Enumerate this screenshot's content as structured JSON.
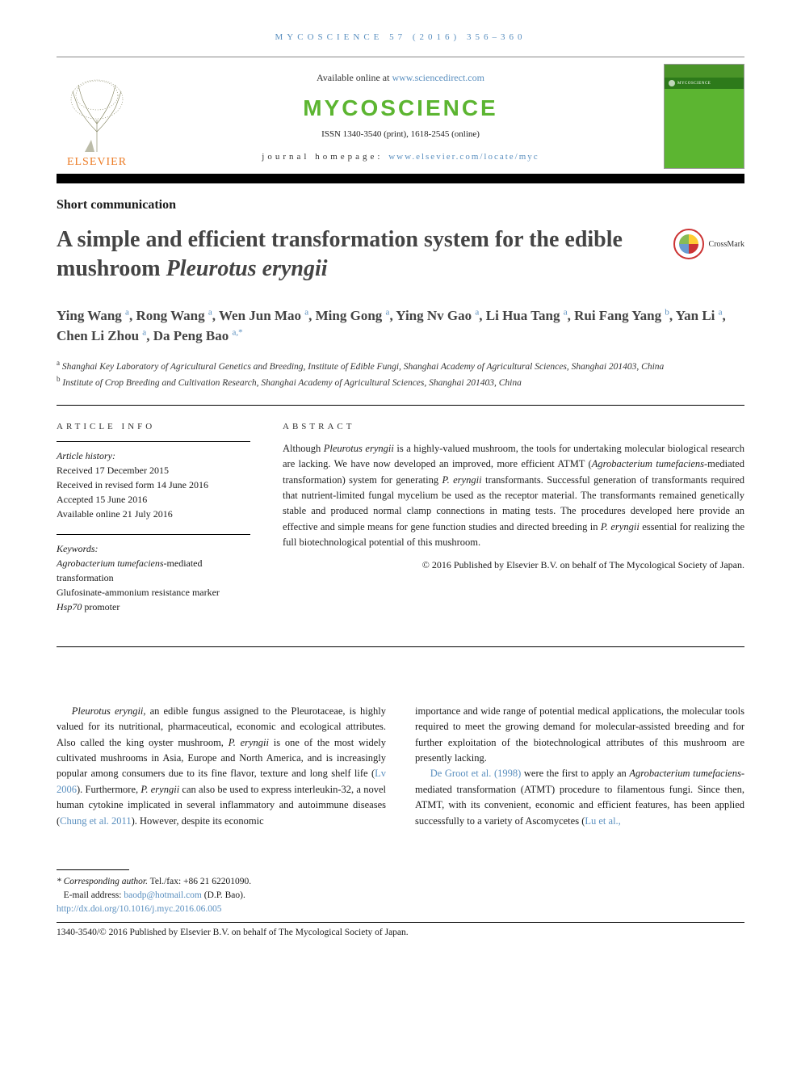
{
  "running_head": "MYCOSCIENCE 57 (2016) 356–360",
  "masthead": {
    "available_prefix": "Available online at ",
    "available_url": "www.sciencedirect.com",
    "journal_brand": "MYCOSCIENCE",
    "issn": "ISSN 1340-3540 (print), 1618-2545 (online)",
    "homepage_prefix": "journal homepage: ",
    "homepage_url": "www.elsevier.com/locate/myc",
    "elsevier": "ELSEVIER",
    "cover_band": "MYCOSCIENCE"
  },
  "article_type": "Short communication",
  "title_pre": "A simple and efficient transformation system for the edible mushroom ",
  "title_em": "Pleurotus eryngii",
  "crossmark": "CrossMark",
  "authors_html": "Ying Wang <sup>a</sup>, Rong Wang <sup>a</sup>, Wen Jun Mao <sup>a</sup>, Ming Gong <sup>a</sup>, Ying Nv Gao <sup>a</sup>, Li Hua Tang <sup>a</sup>, Rui Fang Yang <sup>b</sup>, Yan Li <sup>a</sup>, Chen Li Zhou <sup>a</sup>, Da Peng Bao <sup>a,*</sup>",
  "affiliations": {
    "a": "Shanghai Key Laboratory of Agricultural Genetics and Breeding, Institute of Edible Fungi, Shanghai Academy of Agricultural Sciences, Shanghai 201403, China",
    "b": "Institute of Crop Breeding and Cultivation Research, Shanghai Academy of Agricultural Sciences, Shanghai 201403, China"
  },
  "info_head": "ARTICLE INFO",
  "abs_head": "ABSTRACT",
  "history": {
    "label": "Article history:",
    "received": "Received 17 December 2015",
    "revised": "Received in revised form 14 June 2016",
    "accepted": "Accepted 15 June 2016",
    "online": "Available online 21 July 2016"
  },
  "keywords": {
    "label": "Keywords:",
    "k1_pre": "Agrobacterium tumefaciens",
    "k1_post": "-mediated transformation",
    "k2": "Glufosinate-ammonium resistance marker",
    "k3_em": "Hsp70",
    "k3_post": " promoter"
  },
  "abstract_parts": {
    "p1": "Although ",
    "em1": "Pleurotus eryngii",
    "p2": " is a highly-valued mushroom, the tools for undertaking molecular biological research are lacking. We have now developed an improved, more efficient ATMT (",
    "em2": "Agrobacterium tumefaciens",
    "p3": "-mediated transformation) system for generating ",
    "em3": "P. eryngii",
    "p4": " transformants. Successful generation of transformants required that nutrient-limited fungal mycelium be used as the receptor material. The transformants remained genetically stable and produced normal clamp connections in mating tests. The procedures developed here provide an effective and simple means for gene function studies and directed breeding in ",
    "em4": "P. eryngii",
    "p5": " essential for realizing the full biotechnological potential of this mushroom."
  },
  "copyright": "© 2016 Published by Elsevier B.V. on behalf of The Mycological Society of Japan.",
  "body": {
    "left": {
      "em1": "Pleurotus eryngii",
      "t1": ", an edible fungus assigned to the Pleurotaceae, is highly valued for its nutritional, pharmaceutical, economic and ecological attributes. Also called the king oyster mushroom, ",
      "em2": "P. eryngii",
      "t2": " is one of the most widely cultivated mushrooms in Asia, Europe and North America, and is increasingly popular among consumers due to its fine flavor, texture and long shelf life (",
      "cite1": "Lv 2006",
      "t3": "). Furthermore, ",
      "em3": "P. eryngii",
      "t4": " can also be used to express interleukin-32, a novel human cytokine implicated in several inflammatory and autoimmune diseases (",
      "cite2": "Chung et al. 2011",
      "t5": "). However, despite its economic"
    },
    "right": {
      "t1": "importance and wide range of potential medical applications, the molecular tools required to meet the growing demand for molecular-assisted breeding and for further exploitation of the biotechnological attributes of this mushroom are presently lacking.",
      "cite1": "De Groot et al. (1998)",
      "t2": " were the first to apply an ",
      "em1": "Agrobacterium tumefaciens",
      "t3": "-mediated transformation (ATMT) procedure to filamentous fungi. Since then, ATMT, with its convenient, economic and efficient features, has been applied successfully to a variety of Ascomycetes (",
      "cite2": "Lu et al.,"
    }
  },
  "footnotes": {
    "corr_label": "* Corresponding author.",
    "corr_tel": " Tel./fax: +86 21 62201090.",
    "email_label": "E-mail address: ",
    "email": "baodp@hotmail.com",
    "email_who": " (D.P. Bao).",
    "doi": "http://dx.doi.org/10.1016/j.myc.2016.06.005",
    "issn_copy": "1340-3540/© 2016 Published by Elsevier B.V. on behalf of The Mycological Society of Japan."
  },
  "colors": {
    "link": "#5a8fbf",
    "brand_green": "#5cb531",
    "elsevier_orange": "#ec7c26"
  }
}
